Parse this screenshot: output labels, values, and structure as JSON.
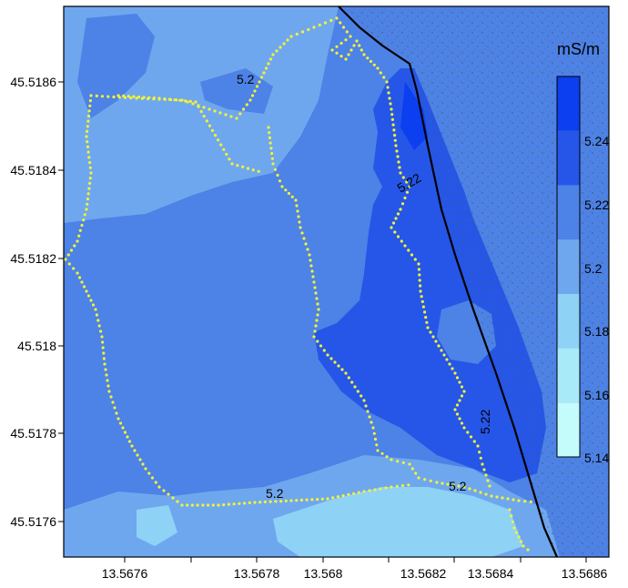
{
  "map": {
    "unit_label": "mS/m",
    "x_ticks": [
      "13.5676",
      "13.5678",
      "13.568",
      "13.5682",
      "13.5684",
      "13.5686"
    ],
    "y_ticks": [
      "45.5186",
      "45.5184",
      "45.5182",
      "45.518",
      "45.5178",
      "45.5176"
    ],
    "contour_labels": [
      "5.2",
      "5.22",
      "5.22",
      "5.2",
      "5.2"
    ],
    "legend": {
      "levels": [
        "5.24",
        "5.22",
        "5.2",
        "5.18",
        "5.16",
        "5.14"
      ],
      "colors": [
        "#0b3ff0",
        "#2556e8",
        "#4d82e6",
        "#6fa7ee",
        "#8ed2f6",
        "#a9eaf8",
        "#c4fbfb"
      ]
    },
    "survey_track_color": "#f2f23a",
    "coastline_color": "#000000"
  }
}
